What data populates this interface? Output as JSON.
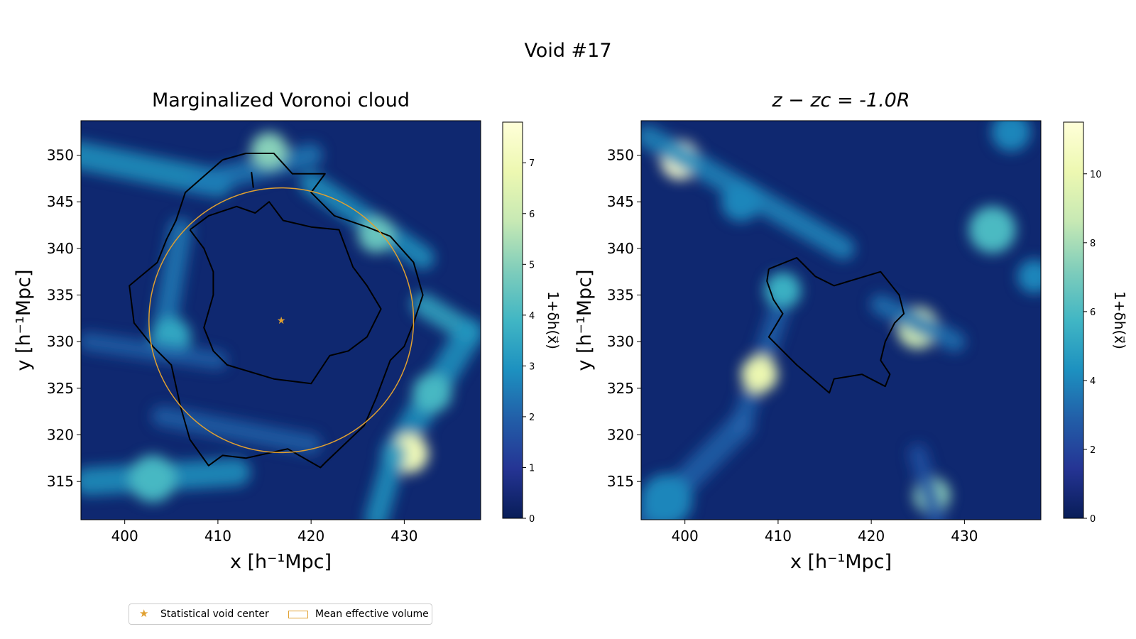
{
  "suptitle": "Void #17",
  "legend": {
    "center_label": "Statistical void center",
    "volume_label": "Mean effective volume"
  },
  "colors": {
    "void_center": "#e0a030",
    "effective_volume": "#e0a030",
    "contour": "#000000",
    "colormap": [
      "#081d58",
      "#253494",
      "#225ea8",
      "#1d91c0",
      "#41b6c4",
      "#7fcdbb",
      "#c7e9b4",
      "#edf8b1",
      "#ffffd9"
    ]
  },
  "chart_data": [
    {
      "type": "heatmap",
      "title": "Marginalized Voronoi cloud",
      "xlabel": "x [h⁻¹Mpc]",
      "ylabel": "y [h⁻¹Mpc]",
      "xlim": [
        395.3,
        438.2
      ],
      "ylim": [
        310.9,
        353.7
      ],
      "xticks": [
        400,
        410,
        420,
        430
      ],
      "yticks": [
        315,
        320,
        325,
        330,
        335,
        340,
        345,
        350
      ],
      "colorbar": {
        "label": "1+δh(x⃗)",
        "range": [
          0,
          7.8
        ],
        "ticks": [
          0,
          1,
          2,
          3,
          4,
          5,
          6,
          7
        ]
      },
      "void_center": {
        "x": 416.8,
        "y": 332.3
      },
      "effective_radius": 14.2,
      "density_features": [
        {
          "type": "filament",
          "from": [
            395,
            350
          ],
          "to": [
            410,
            347
          ],
          "width": 3,
          "value": 3.0
        },
        {
          "type": "filament",
          "from": [
            408,
            347
          ],
          "to": [
            420,
            350
          ],
          "width": 2.5,
          "value": 2.5
        },
        {
          "type": "peak",
          "x": 415.5,
          "y": 350.5,
          "sigma": 1.4,
          "value": 5.0
        },
        {
          "type": "filament",
          "from": [
            420,
            347
          ],
          "to": [
            432,
            339
          ],
          "width": 2.5,
          "value": 3.0
        },
        {
          "type": "peak",
          "x": 427,
          "y": 341.5,
          "sigma": 1.4,
          "value": 4.5
        },
        {
          "type": "filament",
          "from": [
            406,
            342
          ],
          "to": [
            404,
            330
          ],
          "width": 2.5,
          "value": 2.5
        },
        {
          "type": "peak",
          "x": 405,
          "y": 330.5,
          "sigma": 1.5,
          "value": 3.5
        },
        {
          "type": "filament",
          "from": [
            396,
            330
          ],
          "to": [
            410,
            328
          ],
          "width": 2.0,
          "value": 2.0
        },
        {
          "type": "filament",
          "from": [
            432,
            334
          ],
          "to": [
            437,
            331
          ],
          "width": 2.5,
          "value": 3.5
        },
        {
          "type": "filament",
          "from": [
            437,
            331
          ],
          "to": [
            429,
            318
          ],
          "width": 3,
          "value": 3.0
        },
        {
          "type": "peak",
          "x": 433,
          "y": 324.5,
          "sigma": 1.5,
          "value": 4.0
        },
        {
          "type": "peak",
          "x": 430.5,
          "y": 318,
          "sigma": 1.5,
          "value": 7.0
        },
        {
          "type": "filament",
          "from": [
            429,
            318
          ],
          "to": [
            427,
            311
          ],
          "width": 2.5,
          "value": 3.0
        },
        {
          "type": "filament",
          "from": [
            396,
            315
          ],
          "to": [
            412,
            316
          ],
          "width": 3,
          "value": 3.0
        },
        {
          "type": "peak",
          "x": 403,
          "y": 315.3,
          "sigma": 1.8,
          "value": 4.0
        },
        {
          "type": "filament",
          "from": [
            404,
            322
          ],
          "to": [
            420,
            319
          ],
          "width": 2.2,
          "value": 2.0
        }
      ],
      "contours": [
        [
          [
            410.5,
            349.5
          ],
          [
            413,
            350.2
          ],
          [
            416,
            350.2
          ],
          [
            418,
            348
          ],
          [
            421.5,
            348
          ],
          [
            420,
            346
          ],
          [
            422.5,
            343.5
          ],
          [
            426,
            342.3
          ],
          [
            428.5,
            341.3
          ],
          [
            431,
            338.5
          ],
          [
            432,
            335
          ],
          [
            431,
            332
          ],
          [
            430,
            329.5
          ],
          [
            428.5,
            328
          ],
          [
            427,
            324
          ],
          [
            425.7,
            321
          ],
          [
            421.5,
            317
          ],
          [
            421,
            316.5
          ],
          [
            417.5,
            318.5
          ],
          [
            413,
            317.5
          ],
          [
            410.5,
            317.8
          ],
          [
            409,
            316.7
          ],
          [
            407,
            319.5
          ],
          [
            406,
            323
          ],
          [
            405,
            327.5
          ],
          [
            403,
            329.5
          ],
          [
            401,
            332
          ],
          [
            400.5,
            336
          ],
          [
            403.5,
            338.5
          ],
          [
            404.5,
            341
          ],
          [
            405.5,
            343
          ],
          [
            406.5,
            346
          ],
          [
            410.5,
            349.5
          ]
        ],
        [
          [
            407,
            342
          ],
          [
            409,
            343.5
          ],
          [
            412,
            344.5
          ],
          [
            414,
            343.8
          ],
          [
            415.5,
            345
          ],
          [
            417,
            343
          ],
          [
            420,
            342.3
          ],
          [
            423,
            342
          ],
          [
            424.5,
            338
          ],
          [
            426,
            336
          ],
          [
            427.5,
            333.5
          ],
          [
            426,
            330.5
          ],
          [
            424,
            329
          ],
          [
            422,
            328.5
          ],
          [
            420,
            325.5
          ],
          [
            416,
            326
          ],
          [
            411,
            327.5
          ],
          [
            409.5,
            329
          ],
          [
            408.5,
            331.5
          ],
          [
            409.5,
            335
          ],
          [
            409.5,
            337.5
          ],
          [
            408.5,
            340
          ],
          [
            407,
            342
          ]
        ],
        [
          [
            413.6,
            348.2
          ],
          [
            413.8,
            346.5
          ]
        ]
      ]
    },
    {
      "type": "heatmap",
      "title": "z − zc = -1.0R",
      "xlabel": "x [h⁻¹Mpc]",
      "ylabel": "y [h⁻¹Mpc]",
      "xlim": [
        395.3,
        438.2
      ],
      "ylim": [
        310.9,
        353.7
      ],
      "xticks": [
        400,
        410,
        420,
        430
      ],
      "yticks": [
        315,
        320,
        325,
        330,
        335,
        340,
        345,
        350
      ],
      "colorbar": {
        "label": "1+δh(x⃗)",
        "range": [
          0,
          11.5
        ],
        "ticks": [
          0,
          2,
          4,
          6,
          8,
          10
        ]
      },
      "density_features": [
        {
          "type": "peak",
          "x": 399.5,
          "y": 349.5,
          "sigma": 1.5,
          "value": 11.0
        },
        {
          "type": "filament",
          "from": [
            396,
            352
          ],
          "to": [
            417,
            340
          ],
          "width": 2.5,
          "value": 4.0
        },
        {
          "type": "peak",
          "x": 406,
          "y": 345,
          "sigma": 1.5,
          "value": 4.0
        },
        {
          "type": "peak",
          "x": 433,
          "y": 342,
          "sigma": 1.8,
          "value": 6.0
        },
        {
          "type": "peak",
          "x": 435,
          "y": 352.5,
          "sigma": 1.5,
          "value": 4.0
        },
        {
          "type": "peak",
          "x": 437.5,
          "y": 337,
          "sigma": 1.3,
          "value": 4.0
        },
        {
          "type": "peak",
          "x": 410.5,
          "y": 335.5,
          "sigma": 1.4,
          "value": 5.5
        },
        {
          "type": "filament",
          "from": [
            410,
            333
          ],
          "to": [
            406,
            321
          ],
          "width": 2.2,
          "value": 3.0
        },
        {
          "type": "peak",
          "x": 408,
          "y": 326.5,
          "sigma": 1.4,
          "value": 10.0
        },
        {
          "type": "filament",
          "from": [
            406,
            321
          ],
          "to": [
            396,
            311
          ],
          "width": 2.8,
          "value": 3.0
        },
        {
          "type": "peak",
          "x": 398,
          "y": 313,
          "sigma": 2,
          "value": 4.0
        },
        {
          "type": "peak",
          "x": 425,
          "y": 331.5,
          "sigma": 1.6,
          "value": 9.0
        },
        {
          "type": "filament",
          "from": [
            421,
            334
          ],
          "to": [
            429,
            330
          ],
          "width": 2.2,
          "value": 3.5
        },
        {
          "type": "peak",
          "x": 426.5,
          "y": 313.5,
          "sigma": 1.4,
          "value": 7.5
        },
        {
          "type": "filament",
          "from": [
            427,
            311
          ],
          "to": [
            425,
            318
          ],
          "width": 2,
          "value": 2.5
        }
      ],
      "contours": [
        [
          [
            409,
            337.8
          ],
          [
            412,
            339
          ],
          [
            414,
            337
          ],
          [
            416,
            336
          ],
          [
            421,
            337.5
          ],
          [
            423,
            335
          ],
          [
            423.5,
            333
          ],
          [
            422.5,
            332
          ],
          [
            421.5,
            330
          ],
          [
            421,
            328
          ],
          [
            422,
            326.5
          ],
          [
            421.5,
            325.2
          ],
          [
            419,
            326.5
          ],
          [
            416,
            326
          ],
          [
            415.5,
            324.5
          ],
          [
            412,
            327.5
          ],
          [
            409,
            330.5
          ],
          [
            410.5,
            333
          ],
          [
            409.5,
            334.5
          ],
          [
            408.8,
            336.5
          ],
          [
            409,
            337.8
          ]
        ]
      ]
    }
  ]
}
